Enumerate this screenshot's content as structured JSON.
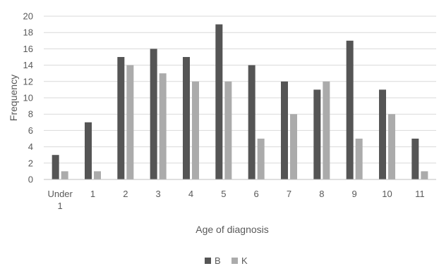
{
  "chart_data": {
    "type": "bar",
    "title": "",
    "xlabel": "Age of diagnosis",
    "ylabel": "Frequency",
    "categories": [
      [
        "Under",
        "1"
      ],
      [
        "1"
      ],
      [
        "2"
      ],
      [
        "3"
      ],
      [
        "4"
      ],
      [
        "5"
      ],
      [
        "6"
      ],
      [
        "7"
      ],
      [
        "8"
      ],
      [
        "9"
      ],
      [
        "10"
      ],
      [
        "11"
      ]
    ],
    "ylim": [
      0,
      20
    ],
    "yticks": [
      0,
      2,
      4,
      6,
      8,
      10,
      12,
      14,
      16,
      18,
      20
    ],
    "grid": true,
    "legend_position": "bottom",
    "series": [
      {
        "name": "B",
        "color": "#555555",
        "values": [
          3,
          7,
          15,
          16,
          15,
          19,
          14,
          12,
          11,
          17,
          11,
          5
        ]
      },
      {
        "name": "K",
        "color": "#ababab",
        "values": [
          1,
          1,
          14,
          13,
          12,
          12,
          5,
          8,
          12,
          5,
          8,
          1
        ]
      }
    ]
  }
}
